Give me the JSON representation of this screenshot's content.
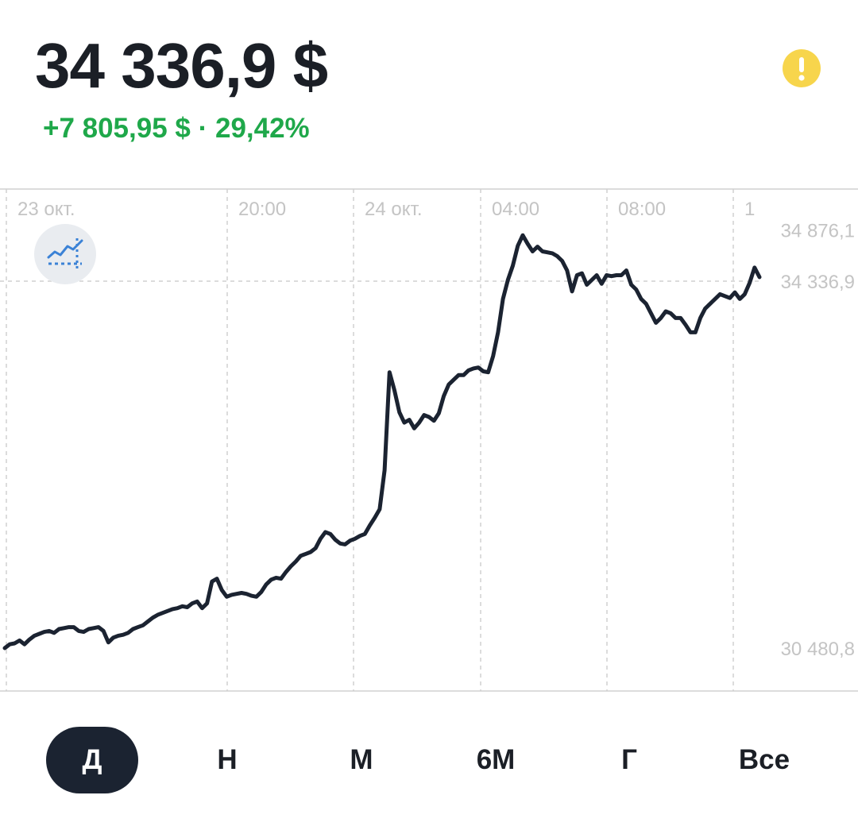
{
  "header": {
    "price": "34 336,9 $",
    "change": "+7 805,95 $ · 29,42%"
  },
  "alert_icon": "exclamation-icon",
  "chart_toggle_icon": "trend-line-icon",
  "colors": {
    "positive": "#1fa84a",
    "line": "#1b2331",
    "alert": "#f7d54c",
    "grid": "#d0d0d0",
    "axis_text": "#c4c4c4"
  },
  "chart_data": {
    "type": "line",
    "x_tick_labels": [
      "23 окт.",
      "20:00",
      "24 окт.",
      "04:00",
      "08:00",
      "1"
    ],
    "y_tick_labels": [
      "34 876,1",
      "34 336,9",
      "30 480,8"
    ],
    "y_ticks": [
      34876.1,
      34336.9,
      30480.8
    ],
    "current_value": 34336.9,
    "ylim": [
      30480.8,
      34876.1
    ],
    "grid": true,
    "series": [
      {
        "values": [
          30480,
          30520,
          30530,
          30560,
          30520,
          30570,
          30610,
          30630,
          30650,
          30660,
          30640,
          30680,
          30690,
          30700,
          30700,
          30660,
          30650,
          30680,
          30690,
          30700,
          30660,
          30540,
          30590,
          30610,
          30620,
          30640,
          30680,
          30700,
          30720,
          30760,
          30800,
          30830,
          30850,
          30870,
          30890,
          30900,
          30920,
          30910,
          30950,
          30970,
          30900,
          30950,
          31180,
          31210,
          31090,
          31020,
          31040,
          31050,
          31060,
          31050,
          31030,
          31020,
          31070,
          31150,
          31200,
          31220,
          31210,
          31280,
          31340,
          31390,
          31450,
          31470,
          31490,
          31530,
          31630,
          31700,
          31680,
          31620,
          31580,
          31570,
          31610,
          31630,
          31660,
          31680,
          31770,
          31850,
          31940,
          32350,
          33380,
          33190,
          32960,
          32850,
          32880,
          32790,
          32850,
          32930,
          32910,
          32870,
          32950,
          33130,
          33250,
          33300,
          33350,
          33350,
          33400,
          33420,
          33430,
          33390,
          33380,
          33550,
          33800,
          34150,
          34350,
          34500,
          34710,
          34820,
          34730,
          34650,
          34700,
          34650,
          34640,
          34630,
          34600,
          34550,
          34450,
          34230,
          34400,
          34420,
          34300,
          34350,
          34400,
          34310,
          34400,
          34390,
          34400,
          34400,
          34450,
          34300,
          34250,
          34150,
          34100,
          34000,
          33900,
          33950,
          34020,
          34000,
          33950,
          33950,
          33880,
          33800,
          33800,
          33950,
          34050,
          34100,
          34150,
          34200,
          34180,
          34160,
          34220,
          34150,
          34200,
          34320,
          34480,
          34380
        ]
      }
    ]
  },
  "periods": [
    {
      "label": "Д",
      "active": true
    },
    {
      "label": "Н",
      "active": false
    },
    {
      "label": "М",
      "active": false
    },
    {
      "label": "6М",
      "active": false
    },
    {
      "label": "Г",
      "active": false
    },
    {
      "label": "Все",
      "active": false
    }
  ]
}
